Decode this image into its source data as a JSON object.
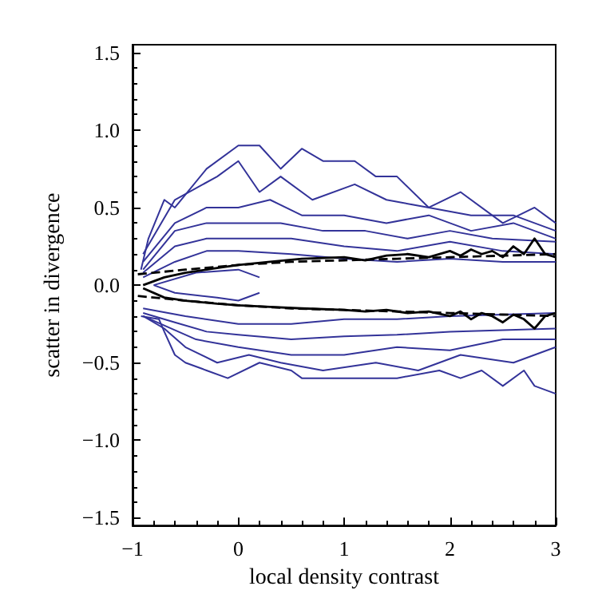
{
  "chart_data": {
    "type": "line",
    "xlabel": "local density contrast",
    "ylabel": "scatter in divergence",
    "xlim": [
      -1,
      3
    ],
    "ylim": [
      -1.55,
      1.55
    ],
    "xticks": [
      {
        "value": -1,
        "label": "−1"
      },
      0,
      1,
      2,
      3
    ],
    "yticks": [
      {
        "value": -1.5,
        "label": "−1.5"
      },
      {
        "value": -1,
        "label": "−1.0"
      },
      {
        "value": -0.5,
        "label": "−0.5"
      },
      {
        "value": 0,
        "label": "0.0"
      },
      {
        "value": 0.5,
        "label": "0.5"
      },
      {
        "value": 1,
        "label": "1.0"
      },
      {
        "value": 1.5,
        "label": "1.5"
      }
    ],
    "marker": "none",
    "series": [
      {
        "color": "#333399",
        "x": [
          -0.92,
          -0.85,
          -0.7,
          -0.6,
          -0.3,
          0,
          0.2,
          0.4,
          0.6,
          0.8,
          1.1,
          1.3,
          1.5,
          1.8,
          2.1,
          2.5,
          2.8,
          3
        ],
        "values": [
          0.1,
          0.3,
          0.55,
          0.5,
          0.75,
          0.9,
          0.9,
          0.75,
          0.88,
          0.8,
          0.8,
          0.7,
          0.7,
          0.5,
          0.6,
          0.4,
          0.5,
          0.4
        ]
      },
      {
        "color": "#333399",
        "x": [
          -0.9,
          -0.6,
          -0.2,
          0,
          0.2,
          0.4,
          0.7,
          1.1,
          1.4,
          1.8,
          2.2,
          2.6,
          3
        ],
        "values": [
          0.2,
          0.55,
          0.7,
          0.8,
          0.6,
          0.7,
          0.55,
          0.65,
          0.55,
          0.5,
          0.45,
          0.45,
          0.35
        ]
      },
      {
        "color": "#333399",
        "x": [
          -0.9,
          -0.6,
          -0.3,
          0,
          0.3,
          0.6,
          1,
          1.4,
          1.8,
          2.2,
          2.6,
          3
        ],
        "values": [
          0.15,
          0.4,
          0.5,
          0.5,
          0.55,
          0.45,
          0.45,
          0.4,
          0.45,
          0.35,
          0.4,
          0.3
        ]
      },
      {
        "color": "#333399",
        "x": [
          -0.9,
          -0.6,
          -0.3,
          0,
          0.4,
          0.8,
          1.2,
          1.6,
          2,
          2.4,
          3
        ],
        "values": [
          0.1,
          0.35,
          0.4,
          0.4,
          0.4,
          0.35,
          0.35,
          0.3,
          0.35,
          0.3,
          0.28
        ]
      },
      {
        "color": "#333399",
        "x": [
          -0.9,
          -0.6,
          -0.3,
          0,
          0.5,
          1,
          1.5,
          2,
          2.5,
          3
        ],
        "values": [
          0.08,
          0.25,
          0.3,
          0.3,
          0.3,
          0.25,
          0.22,
          0.28,
          0.22,
          0.2
        ]
      },
      {
        "color": "#333399",
        "x": [
          -0.9,
          -0.6,
          -0.3,
          0,
          0.5,
          1,
          1.5,
          2,
          2.5,
          3
        ],
        "values": [
          0.05,
          0.15,
          0.22,
          0.22,
          0.2,
          0.17,
          0.15,
          0.17,
          0.15,
          0.15
        ]
      },
      {
        "color": "#333399",
        "x": [
          -0.8,
          -0.6,
          -0.2,
          0,
          0.2
        ],
        "values": [
          0,
          -0.05,
          -0.08,
          -0.1,
          -0.05
        ]
      },
      {
        "color": "#333399",
        "x": [
          -0.8,
          -0.4,
          0,
          0.2
        ],
        "values": [
          0,
          0.08,
          0.1,
          0.05
        ]
      },
      {
        "color": "#333399",
        "x": [
          -0.92,
          -0.75,
          -0.7,
          -0.6,
          -0.5,
          -0.3,
          -0.1,
          0.2,
          0.5,
          0.6,
          1,
          1.5,
          1.9,
          2.1,
          2.3,
          2.5,
          2.7,
          2.8,
          3
        ],
        "values": [
          -0.2,
          -0.22,
          -0.3,
          -0.45,
          -0.5,
          -0.55,
          -0.6,
          -0.5,
          -0.55,
          -0.6,
          -0.6,
          -0.6,
          -0.55,
          -0.6,
          -0.55,
          -0.65,
          -0.55,
          -0.65,
          -0.7
        ]
      },
      {
        "color": "#333399",
        "x": [
          -0.9,
          -0.7,
          -0.5,
          -0.2,
          0.1,
          0.4,
          0.8,
          1.3,
          1.7,
          2.1,
          2.6,
          3
        ],
        "values": [
          -0.2,
          -0.28,
          -0.4,
          -0.5,
          -0.45,
          -0.5,
          -0.55,
          -0.5,
          -0.55,
          -0.45,
          -0.5,
          -0.4
        ]
      },
      {
        "color": "#333399",
        "x": [
          -0.9,
          -0.7,
          -0.4,
          0,
          0.5,
          1,
          1.5,
          2,
          2.5,
          3
        ],
        "values": [
          -0.2,
          -0.26,
          -0.35,
          -0.4,
          -0.45,
          -0.45,
          -0.4,
          -0.42,
          -0.35,
          -0.35
        ]
      },
      {
        "color": "#333399",
        "x": [
          -0.9,
          -0.6,
          -0.3,
          0,
          0.5,
          1,
          1.5,
          2,
          3
        ],
        "values": [
          -0.18,
          -0.24,
          -0.3,
          -0.32,
          -0.35,
          -0.33,
          -0.32,
          -0.3,
          -0.28
        ]
      },
      {
        "color": "#333399",
        "x": [
          -0.9,
          -0.5,
          0,
          0.5,
          1,
          1.5,
          2,
          3
        ],
        "values": [
          -0.15,
          -0.2,
          -0.25,
          -0.25,
          -0.22,
          -0.22,
          -0.2,
          -0.18
        ]
      },
      {
        "color": "#000000",
        "x": [
          -0.9,
          -0.7,
          -0.5,
          -0.2,
          0,
          0.3,
          0.6,
          1,
          1.2,
          1.4,
          1.6,
          1.8,
          2,
          2.1,
          2.2,
          2.3,
          2.4,
          2.5,
          2.6,
          2.7,
          2.8,
          2.9,
          3
        ],
        "values": [
          0,
          0.05,
          0.08,
          0.11,
          0.13,
          0.15,
          0.17,
          0.18,
          0.16,
          0.19,
          0.2,
          0.18,
          0.22,
          0.19,
          0.23,
          0.2,
          0.22,
          0.18,
          0.25,
          0.2,
          0.3,
          0.2,
          0.18
        ]
      },
      {
        "color": "#000000",
        "x": [
          -0.9,
          -0.7,
          -0.5,
          -0.2,
          0,
          0.3,
          0.6,
          1,
          1.2,
          1.4,
          1.6,
          1.8,
          2,
          2.1,
          2.2,
          2.3,
          2.4,
          2.5,
          2.6,
          2.7,
          2.8,
          2.9,
          3
        ],
        "values": [
          -0.02,
          -0.08,
          -0.1,
          -0.12,
          -0.13,
          -0.14,
          -0.15,
          -0.16,
          -0.17,
          -0.16,
          -0.18,
          -0.17,
          -0.2,
          -0.17,
          -0.22,
          -0.18,
          -0.2,
          -0.24,
          -0.19,
          -0.22,
          -0.28,
          -0.2,
          -0.18
        ]
      },
      {
        "color": "#000000",
        "line_style": "dashed",
        "x": [
          -0.95,
          -0.5,
          0,
          0.5,
          1,
          1.5,
          2,
          2.5,
          3
        ],
        "values": [
          0.07,
          0.1,
          0.13,
          0.15,
          0.16,
          0.17,
          0.18,
          0.19,
          0.2
        ]
      },
      {
        "color": "#000000",
        "line_style": "dashed",
        "x": [
          -0.95,
          -0.5,
          0,
          0.5,
          1,
          1.5,
          2,
          2.5,
          3
        ],
        "values": [
          -0.07,
          -0.1,
          -0.13,
          -0.15,
          -0.16,
          -0.17,
          -0.18,
          -0.19,
          -0.2
        ]
      }
    ]
  }
}
